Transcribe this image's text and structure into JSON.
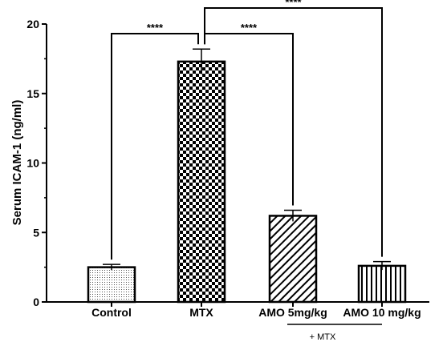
{
  "chart_data": {
    "type": "bar",
    "ylabel": "Serum ICAM-1 (ng/ml)",
    "ylim": [
      0,
      20
    ],
    "yticks": [
      0,
      5,
      10,
      15,
      20
    ],
    "grid": false,
    "categories": [
      "Control",
      "MTX",
      "AMO 5mg/kg",
      "AMO 10 mg/kg"
    ],
    "values": [
      2.5,
      17.3,
      6.2,
      2.6
    ],
    "errors": [
      0.2,
      0.9,
      0.4,
      0.3
    ],
    "patterns": [
      "dots",
      "checker",
      "diagonal-hatch",
      "vertical-stripes"
    ],
    "significance": [
      {
        "from": "Control",
        "to": "MTX",
        "label": "****"
      },
      {
        "from": "MTX",
        "to": "AMO 5mg/kg",
        "label": "****"
      },
      {
        "from": "MTX",
        "to": "AMO 10 mg/kg",
        "label": "****"
      }
    ],
    "group_label": "+ MTX"
  }
}
